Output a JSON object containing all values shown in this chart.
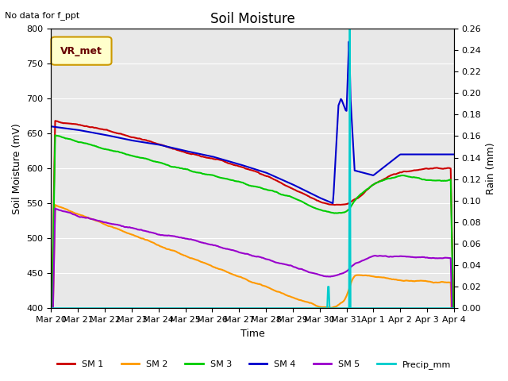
{
  "title": "Soil Moisture",
  "subtitle": "No data for f_ppt",
  "xlabel": "Time",
  "ylabel_left": "Soil Moisture (mV)",
  "ylabel_right": "Rain (mm)",
  "ylim_left": [
    400,
    800
  ],
  "ylim_right": [
    0.0,
    0.26
  ],
  "yticks_left": [
    400,
    450,
    500,
    550,
    600,
    650,
    700,
    750,
    800
  ],
  "yticks_right": [
    0.0,
    0.02,
    0.04,
    0.06,
    0.08,
    0.1,
    0.12,
    0.14,
    0.16,
    0.18,
    0.2,
    0.22,
    0.24,
    0.26
  ],
  "xtick_labels": [
    "Mar 20",
    "Mar 21",
    "Mar 22",
    "Mar 23",
    "Mar 24",
    "Mar 25",
    "Mar 26",
    "Mar 27",
    "Mar 28",
    "Mar 29",
    "Mar 30",
    "Mar 31",
    "Apr 1",
    "Apr 2",
    "Apr 3",
    "Apr 4"
  ],
  "colors": {
    "SM1": "#cc0000",
    "SM2": "#ff9900",
    "SM3": "#00cc00",
    "SM4": "#0000cc",
    "SM5": "#9900cc",
    "Precip": "#00cccc"
  },
  "legend_label": "VR_met",
  "bg_color": "#e8e8e8",
  "grid_color": "#ffffff"
}
